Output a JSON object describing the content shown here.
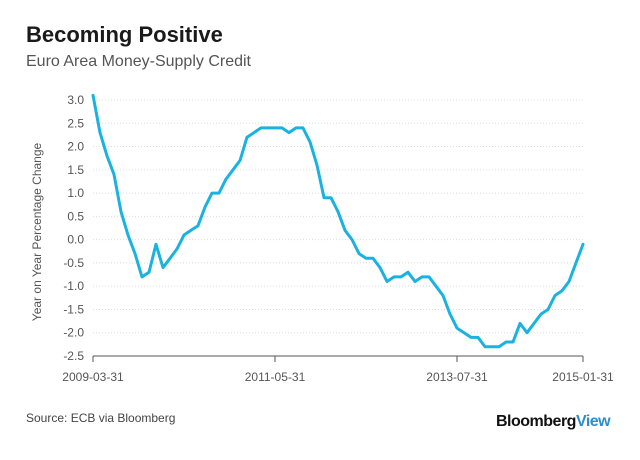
{
  "header": {
    "title": "Becoming Positive",
    "subtitle": "Euro Area Money-Supply Credit"
  },
  "footer": {
    "source": "Source: ECB via Bloomberg",
    "brand_main": "Bloomberg",
    "brand_accent": "View"
  },
  "colors": {
    "line": "#1ab2e0",
    "grid": "#dddddd",
    "axis": "#555555",
    "tick_text": "#555555",
    "brand_accent": "#2b8ccf"
  },
  "chart_data": {
    "type": "line",
    "title": "Becoming Positive",
    "subtitle": "Euro Area Money-Supply Credit",
    "xlabel": "",
    "ylabel": "Year on Year Percentage Change",
    "ylim": [
      -2.5,
      3.0
    ],
    "y_ticks": [
      "3.0",
      "2.5",
      "2.0",
      "1.5",
      "1.0",
      "0.5",
      "0.0",
      "-0.5",
      "-1.0",
      "-1.5",
      "-2.0",
      "-2.5"
    ],
    "x_tick_labels": [
      "2009-03-31",
      "2011-05-31",
      "2013-07-31",
      "2015-01-31"
    ],
    "x_tick_index": [
      0,
      26,
      52,
      70
    ],
    "grid": "horizontal",
    "series": [
      {
        "name": "Euro Area Money-Supply Credit",
        "values": [
          3.1,
          2.3,
          1.8,
          1.4,
          0.6,
          0.1,
          -0.3,
          -0.8,
          -0.7,
          -0.1,
          -0.6,
          -0.4,
          -0.2,
          0.1,
          0.2,
          0.3,
          0.7,
          1.0,
          1.0,
          1.3,
          1.5,
          1.7,
          2.2,
          2.3,
          2.4,
          2.4,
          2.4,
          2.4,
          2.3,
          2.4,
          2.4,
          2.1,
          1.6,
          0.9,
          0.9,
          0.6,
          0.2,
          0.0,
          -0.3,
          -0.4,
          -0.4,
          -0.6,
          -0.9,
          -0.8,
          -0.8,
          -0.7,
          -0.9,
          -0.8,
          -0.8,
          -1.0,
          -1.2,
          -1.6,
          -1.9,
          -2.0,
          -2.1,
          -2.1,
          -2.3,
          -2.3,
          -2.3,
          -2.2,
          -2.2,
          -1.8,
          -2.0,
          -1.8,
          -1.6,
          -1.5,
          -1.2,
          -1.1,
          -0.9,
          -0.5,
          -0.1
        ]
      }
    ]
  }
}
